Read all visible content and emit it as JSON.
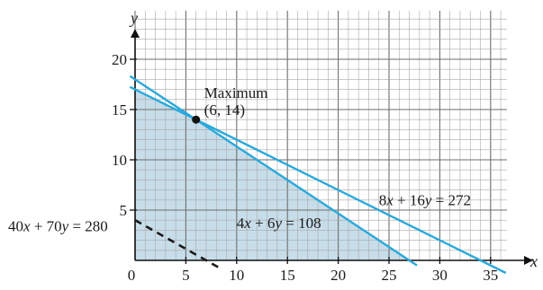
{
  "chart_data": {
    "type": "line",
    "xlabel": "x",
    "ylabel": "y",
    "xlim": [
      0,
      37
    ],
    "ylim": [
      0,
      24
    ],
    "x_ticks": [
      0,
      5,
      10,
      15,
      20,
      25,
      30,
      35
    ],
    "y_ticks": [
      5,
      10,
      15,
      20
    ],
    "x_tick_labels": [
      "0",
      "5",
      "10",
      "15",
      "20",
      "25",
      "30",
      "35"
    ],
    "y_tick_labels": [
      "5",
      "10",
      "15",
      "20"
    ],
    "grid": true,
    "grid_minor_step": 1,
    "series": [
      {
        "name": "8x + 16y = 272",
        "style": "solid",
        "color": "#29a9dc",
        "x": [
          -0.5,
          36.5
        ],
        "y": [
          17.25,
          -1.25
        ]
      },
      {
        "name": "4x + 6y = 108",
        "style": "solid",
        "color": "#29a9dc",
        "x": [
          -0.5,
          27.75
        ],
        "y": [
          18.33,
          -0.5
        ]
      },
      {
        "name": "40x + 70y = 280",
        "style": "dashed",
        "color": "#1a1a1a",
        "x": [
          0,
          8.2
        ],
        "y": [
          4,
          -0.69
        ]
      }
    ],
    "feasible_region": {
      "color": "#c7dde9",
      "vertices": [
        [
          0,
          0
        ],
        [
          0,
          17
        ],
        [
          6,
          14
        ],
        [
          27,
          0
        ]
      ]
    },
    "points": [
      {
        "label": "Maximum",
        "sublabel": "(6, 14)",
        "x": 6,
        "y": 14
      }
    ],
    "annotations": [
      {
        "text": "8x + 16y = 272",
        "anchor_x": 24,
        "anchor_y": 5.5
      },
      {
        "text": "4x + 6y = 108",
        "anchor_x": 10,
        "anchor_y": 3.2
      },
      {
        "text": "40x + 70y = 280",
        "anchor_x": -12.5,
        "anchor_y": 2.9
      }
    ]
  }
}
